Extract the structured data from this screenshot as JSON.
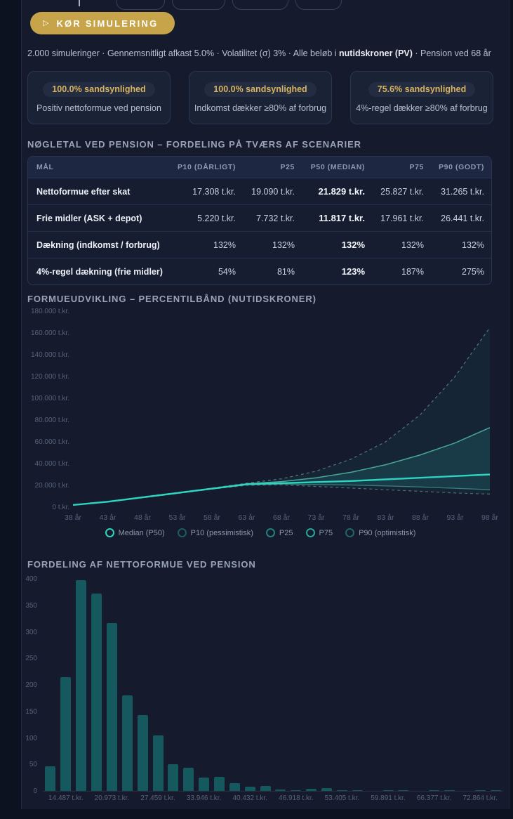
{
  "colors": {
    "accent_teal": "#2dd4bf",
    "gold": "#c7a44a",
    "badge_text": "#d8b45e",
    "bar_fill": "#15585d",
    "panel_bg": "#151b2d",
    "card_bg": "#1a2236"
  },
  "toolbar": {
    "run_label": "KØR SIMULERING"
  },
  "summary": {
    "parts": [
      {
        "text": "2.000 simuleringer · Gennemsnitligt afkast 5.0% · Volatilitet (σ) 3% · Alle beløb i ",
        "bold": false
      },
      {
        "text": "nutidskroner (PV)",
        "bold": true
      },
      {
        "text": " · Pension ved 68 år",
        "bold": false
      }
    ]
  },
  "cards": [
    {
      "badge": "100.0% sandsynlighed",
      "desc": "Positiv nettoformue ved pension"
    },
    {
      "badge": "100.0% sandsynlighed",
      "desc": "Indkomst dækker ≥80% af forbrug"
    },
    {
      "badge": "75.6% sandsynlighed",
      "desc": "4%-regel dækker ≥80% af forbrug"
    }
  ],
  "key_table": {
    "title": "NØGLETAL VED PENSION – FORDELING PÅ TVÆRS AF SCENARIER",
    "columns": [
      "MÅL",
      "P10 (DÅRLIGT)",
      "P25",
      "P50 (MEDIAN)",
      "P75",
      "P90 (GODT)"
    ],
    "rows": [
      {
        "label": "Nettoformue efter skat",
        "values": [
          "17.308 t.kr.",
          "19.090 t.kr.",
          "21.829 t.kr.",
          "25.827 t.kr.",
          "31.265 t.kr."
        ]
      },
      {
        "label": "Frie midler (ASK + depot)",
        "values": [
          "5.220 t.kr.",
          "7.732 t.kr.",
          "11.817 t.kr.",
          "17.961 t.kr.",
          "26.441 t.kr."
        ]
      },
      {
        "label": "Dækning (indkomst / forbrug)",
        "values": [
          "132%",
          "132%",
          "132%",
          "132%",
          "132%"
        ]
      },
      {
        "label": "4%-regel dækning (frie midler)",
        "values": [
          "54%",
          "81%",
          "123%",
          "187%",
          "275%"
        ]
      }
    ]
  },
  "chart_data": [
    {
      "type": "line",
      "title": "FORMUEUDVIKLING – PERCENTILBÅND (NUTIDSKRONER)",
      "x": [
        38,
        43,
        48,
        53,
        58,
        63,
        68,
        73,
        78,
        83,
        88,
        93,
        98
      ],
      "x_suffix": " år",
      "ylim": [
        0,
        180000
      ],
      "ytick_step": 20000,
      "ytick_suffix": " t.kr.",
      "grid": false,
      "legend_position": "bottom",
      "series": [
        {
          "key": "p10",
          "name": "P10 (pessimistisk)",
          "values": [
            2000,
            4800,
            8500,
            12500,
            16500,
            20000,
            20500,
            19000,
            17500,
            16000,
            14500,
            13000,
            12000
          ]
        },
        {
          "key": "p25",
          "name": "P25",
          "values": [
            2000,
            4900,
            8800,
            12800,
            16800,
            20500,
            21200,
            20800,
            20300,
            19500,
            18500,
            17300,
            16000
          ]
        },
        {
          "key": "p50",
          "name": "Median (P50)",
          "values": [
            2000,
            5000,
            9000,
            13000,
            17000,
            21000,
            22000,
            23000,
            24000,
            25500,
            27000,
            28500,
            30000
          ]
        },
        {
          "key": "p75",
          "name": "P75",
          "values": [
            2000,
            5100,
            9200,
            13200,
            17200,
            21500,
            23500,
            27000,
            32000,
            39000,
            48000,
            59000,
            73000
          ]
        },
        {
          "key": "p90",
          "name": "P90 (optimistisk)",
          "values": [
            2000,
            5200,
            9500,
            13500,
            17500,
            22000,
            26000,
            33000,
            44000,
            60000,
            85000,
            120000,
            165000
          ]
        }
      ],
      "legend": [
        "Median (P50)",
        "P10 (pessimistisk)",
        "P25",
        "P75",
        "P90 (optimistisk)"
      ]
    },
    {
      "type": "bar",
      "title": "FORDELING AF NETTOFORMUE VED PENSION",
      "values": [
        47,
        215,
        397,
        372,
        317,
        180,
        143,
        105,
        51,
        44,
        25,
        26,
        14,
        8,
        10,
        3,
        2,
        4,
        6,
        1,
        2,
        0,
        2,
        2,
        0,
        1,
        1,
        0,
        1,
        1
      ],
      "x_labels": [
        "14.487 t.kr.",
        "20.973 t.kr.",
        "27.459 t.kr.",
        "33.946 t.kr.",
        "40.432 t.kr.",
        "46.918 t.kr.",
        "53.405 t.kr.",
        "59.891 t.kr.",
        "66.377 t.kr.",
        "72.864 t.kr."
      ],
      "label_start_index": 1,
      "label_every": 3,
      "ylim": [
        0,
        400
      ],
      "ytick_step": 50,
      "grid": false
    }
  ]
}
